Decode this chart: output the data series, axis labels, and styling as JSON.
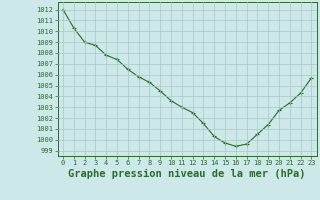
{
  "hours": [
    0,
    1,
    2,
    3,
    4,
    5,
    6,
    7,
    8,
    9,
    10,
    11,
    12,
    13,
    14,
    15,
    16,
    17,
    18,
    19,
    20,
    21,
    22,
    23
  ],
  "pressure": [
    1012.0,
    1010.3,
    1009.0,
    1008.7,
    1007.8,
    1007.4,
    1006.5,
    1005.8,
    1005.3,
    1004.5,
    1003.6,
    1003.0,
    1002.5,
    1001.5,
    1000.3,
    999.7,
    999.4,
    999.6,
    1000.5,
    1001.4,
    1002.7,
    1003.4,
    1004.3,
    1005.7
  ],
  "line_color": "#2d6a2d",
  "marker": "+",
  "marker_size": 3,
  "marker_linewidth": 0.8,
  "line_width": 0.8,
  "bg_color": "#cce8e8",
  "grid_color": "#aac8c8",
  "xlabel": "Graphe pression niveau de la mer (hPa)",
  "xlabel_fontsize": 7.5,
  "tick_fontsize": 5,
  "ylim": [
    998.5,
    1012.7
  ],
  "xlim": [
    -0.5,
    23.5
  ]
}
